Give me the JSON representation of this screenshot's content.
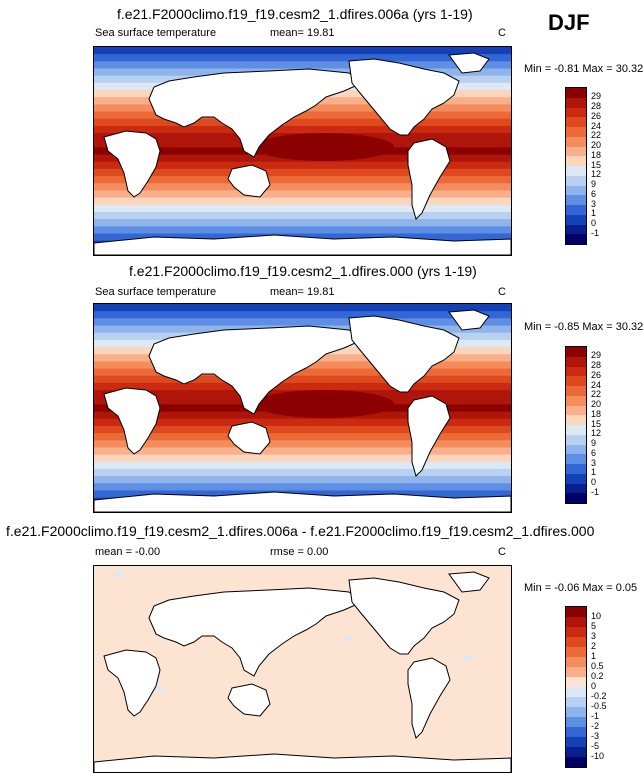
{
  "season": "DJF",
  "panels": [
    {
      "title": "f.e21.F2000climo.f19_f19.cesm2_1.dfires.006a (yrs 1-19)",
      "left_label": "Sea surface temperature",
      "mean_label": "mean=  19.81",
      "rmse_label": "",
      "units": "C",
      "minmax": "Min =  -0.81 Max =  30.32"
    },
    {
      "title": "f.e21.F2000climo.f19_f19.cesm2_1.dfires.000 (yrs 1-19)",
      "left_label": "Sea surface temperature",
      "mean_label": "mean=  19.81",
      "rmse_label": "",
      "units": "C",
      "minmax": "Min =  -0.85 Max =  30.32"
    },
    {
      "title": "f.e21.F2000climo.f19_f19.cesm2_1.dfires.006a - f.e21.F2000climo.f19_f19.cesm2_1.dfires.000",
      "left_label": "mean =  -0.00",
      "mean_label": "rmse =   0.00",
      "rmse_label": "",
      "units": "C",
      "minmax": "Min =  -0.06 Max =   0.05"
    }
  ],
  "chart_data": [
    {
      "type": "heatmap",
      "title": "f.e21.F2000climo.f19_f19.cesm2_1.dfires.006a (yrs 1-19)",
      "variable": "Sea surface temperature",
      "units": "C",
      "mean": 19.81,
      "min": -0.81,
      "max": 30.32,
      "colorbar_levels": [
        "29",
        "28",
        "26",
        "24",
        "22",
        "20",
        "18",
        "15",
        "12",
        "9",
        "6",
        "3",
        "1",
        "0",
        "-1"
      ],
      "colors": [
        "#8b0000",
        "#b0150a",
        "#cc2a10",
        "#dd4a1e",
        "#ec6a38",
        "#f48c5c",
        "#f9b08a",
        "#fcd6bc",
        "#dde8f6",
        "#b9d1f1",
        "#8fb4ec",
        "#5f8fe4",
        "#3467d6",
        "#1541b8",
        "#0a1f8e",
        "#000066"
      ]
    },
    {
      "type": "heatmap",
      "title": "f.e21.F2000climo.f19_f19.cesm2_1.dfires.000 (yrs 1-19)",
      "variable": "Sea surface temperature",
      "units": "C",
      "mean": 19.81,
      "min": -0.85,
      "max": 30.32,
      "colorbar_levels": [
        "29",
        "28",
        "26",
        "24",
        "22",
        "20",
        "18",
        "15",
        "12",
        "9",
        "6",
        "3",
        "1",
        "0",
        "-1"
      ],
      "colors": [
        "#8b0000",
        "#b0150a",
        "#cc2a10",
        "#dd4a1e",
        "#ec6a38",
        "#f48c5c",
        "#f9b08a",
        "#fcd6bc",
        "#dde8f6",
        "#b9d1f1",
        "#8fb4ec",
        "#5f8fe4",
        "#3467d6",
        "#1541b8",
        "#0a1f8e",
        "#000066"
      ]
    },
    {
      "type": "heatmap",
      "title": "f.e21.F2000climo.f19_f19.cesm2_1.dfires.006a - f.e21.F2000climo.f19_f19.cesm2_1.dfires.000",
      "units": "C",
      "mean": -0.0,
      "rmse": 0.0,
      "min": -0.06,
      "max": 0.05,
      "colorbar_levels": [
        "10",
        "5",
        "3",
        "2",
        "1",
        "0.5",
        "0.2",
        "0",
        "-0.2",
        "-0.5",
        "-1",
        "-2",
        "-3",
        "-5",
        "-10"
      ],
      "colors": [
        "#8b0000",
        "#b0150a",
        "#cc2a10",
        "#dd4a1e",
        "#ec6a38",
        "#f48c5c",
        "#f9b08a",
        "#fde4d2",
        "#dde8f6",
        "#b9d1f1",
        "#8fb4ec",
        "#5f8fe4",
        "#3467d6",
        "#1541b8",
        "#0a1f8e",
        "#000066"
      ]
    }
  ]
}
